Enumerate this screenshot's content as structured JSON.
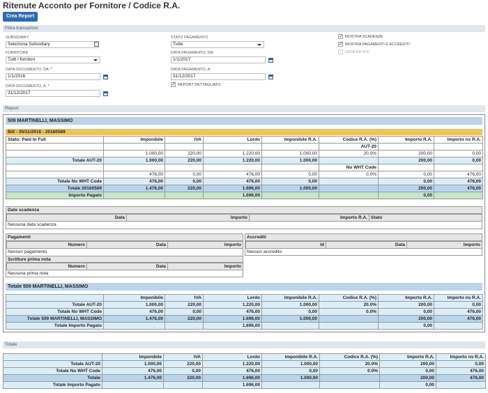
{
  "page": {
    "title": "Ritenute Acconto per Fornitore / Codice R.A.",
    "create_button": "Crea Report"
  },
  "filter": {
    "section_label": "Filtra transazioni",
    "subsidiary_label": "SUBSIDIARY",
    "subsidiary_value": "Seleziona Subsidiary",
    "fornitore_label": "FORNITORE",
    "fornitore_value": "Tutti i fornitori",
    "data_doc_da_label": "DATA DOCUMENTO, DA:",
    "data_doc_da_value": "1/1/2016",
    "data_doc_a_label": "DATA DOCUMENTO, A:",
    "data_doc_a_value": "31/12/2017",
    "stato_label": "STATO PAGAMENTO",
    "stato_value": "Tutte",
    "data_pag_da_label": "DATA PAGAMENTO, DA:",
    "data_pag_da_value": "1/1/2017",
    "data_pag_a_label": "DATA PAGAMENTO, A:",
    "data_pag_a_value": "31/12/2017",
    "report_dettagliato": "REPORT DETTAGLIATO",
    "mostra_scadenze": "MOSTRA SCADENZE",
    "mostra_pagamenti": "MOSTRA PAGAMENTI E ACCREDITI",
    "genera_pdf": "GENERA PDF",
    "required_mark": "*"
  },
  "report": {
    "section_label": "Report",
    "supplier_title": "509 MARTINELLI, MASSIMO",
    "bill_title": "Bill - 30/11/2016 - 20160589",
    "columns": [
      "Imponibile",
      "IVA",
      "Lordo",
      "Imponibile R.A.",
      "Codice R.A. (%)",
      "Importo R.A.",
      "Importo ns R.A."
    ],
    "stato": "Stato: Paid In Full",
    "rows": [
      {
        "label": "",
        "cells": [
          "",
          "",
          "",
          "",
          "AUT-20",
          "",
          ""
        ]
      },
      {
        "label": "",
        "cells": [
          "1.000,00",
          "220,00",
          "1.220,00",
          "1.000,00",
          "20.0%",
          "200,00",
          "0,00"
        ]
      },
      {
        "label": "Totale AUT-20",
        "cells": [
          "1.000,00",
          "220,00",
          "1.220,00",
          "1.000,00",
          "",
          "200,00",
          "0,00"
        ]
      },
      {
        "label": "",
        "cells": [
          "",
          "",
          "",
          "",
          "No WHT Code",
          "",
          ""
        ]
      },
      {
        "label": "",
        "cells": [
          "476,00",
          "0,00",
          "476,00",
          "0,00",
          "0.0%",
          "0,00",
          "476,00"
        ]
      },
      {
        "label": "Totale No WHT Code",
        "cells": [
          "476,00",
          "0,00",
          "476,00",
          "0,00",
          "",
          "0,00",
          "476,00"
        ]
      },
      {
        "label": "Totale 20160589",
        "cells": [
          "1.476,00",
          "220,00",
          "1.696,00",
          "1.000,00",
          "",
          "200,00",
          "476,00"
        ]
      },
      {
        "label": "Importo Pagato",
        "cells": [
          "",
          "",
          "1.696,00",
          "",
          "",
          "0,00",
          ""
        ]
      }
    ],
    "scadenze": {
      "title": "Date scadenza",
      "cols": [
        "Data",
        "Importo",
        "Importo R.A.",
        "Stato"
      ],
      "empty": "Nessuna data scadenza"
    },
    "pagamenti": {
      "title": "Pagamenti",
      "cols": [
        "Numero",
        "Data",
        "Importo"
      ],
      "empty": "Nessun pagamento"
    },
    "scritture": {
      "title": "Scritture prima nota",
      "cols": [
        "Numero",
        "Data",
        "Importo"
      ],
      "empty": "Nessuna prima nota"
    },
    "accrediti": {
      "title": "Accrediti",
      "cols": [
        "Id",
        "Data",
        "Importo"
      ],
      "empty": "Nessun accredito"
    },
    "supplier_total_title": "Totale 509 MARTINELLI, MASSIMO",
    "supplier_total_rows": [
      {
        "label": "Totale AUT-20",
        "cells": [
          "1.000,00",
          "220,00",
          "1.220,00",
          "1.000,00",
          "20.0%",
          "200,00",
          "0,00"
        ]
      },
      {
        "label": "Totale No WHT Code",
        "cells": [
          "476,00",
          "0,00",
          "476,00",
          "0,00",
          "0.0%",
          "0,00",
          "476,00"
        ]
      },
      {
        "label": "Totale 509 MARTINELLI, MASSIMO",
        "cells": [
          "1.476,00",
          "220,00",
          "1.696,00",
          "1.000,00",
          "",
          "200,00",
          "476,00"
        ]
      },
      {
        "label": "Totale Importo Pagato",
        "cells": [
          "",
          "",
          "1.696,00",
          "",
          "",
          "0,00",
          ""
        ]
      }
    ],
    "grand_total_title": "Totale",
    "grand_total_rows": [
      {
        "label": "Totale AUT-20",
        "cells": [
          "1.000,00",
          "220,00",
          "1.220,00",
          "1.000,00",
          "20.0%",
          "200,00",
          "0,00"
        ]
      },
      {
        "label": "Totale No WHT Code",
        "cells": [
          "476,00",
          "0,00",
          "476,00",
          "0,00",
          "0.0%",
          "0,00",
          "476,00"
        ]
      },
      {
        "label": "Totale",
        "cells": [
          "1.476,00",
          "220,00",
          "1.696,00",
          "1.000,00",
          "",
          "200,00",
          "476,00"
        ]
      },
      {
        "label": "Totale Importo Pagato",
        "cells": [
          "",
          "",
          "1.696,00",
          "",
          "",
          "0,00",
          ""
        ]
      }
    ]
  },
  "icons": {
    "calendar": "calendar-icon",
    "lookup": "lookup-icon",
    "dropdown": "chevron-down-icon",
    "checkbox": "checkbox-icon"
  },
  "colors": {
    "button": "#2e6bb3",
    "gold": "#f4c04f",
    "light_blue": "#dbeef8",
    "mid_blue": "#b9d5ec",
    "green": "#c6e6c6",
    "section_blue": "#bcd3ec"
  }
}
